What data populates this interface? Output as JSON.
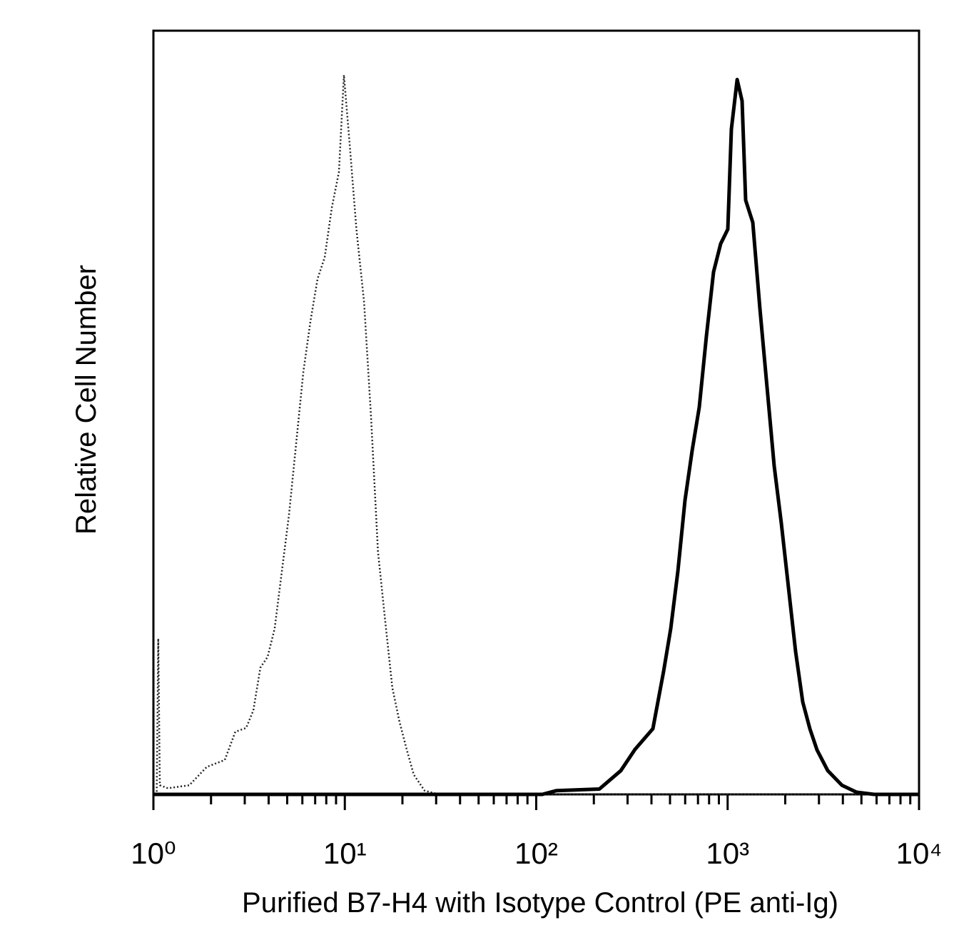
{
  "chart_data": {
    "type": "line",
    "xlabel": "Purified B7-H4 with Isotype Control (PE anti-Ig)",
    "ylabel": "Relative Cell Number",
    "xscale": "log",
    "xlim": [
      1,
      10000
    ],
    "ylim": [
      0,
      100
    ],
    "xticks": [
      {
        "value": 1,
        "label": "10⁰"
      },
      {
        "value": 10,
        "label": "10¹"
      },
      {
        "value": 100,
        "label": "10²"
      },
      {
        "value": 1000,
        "label": "10³"
      },
      {
        "value": 10000,
        "label": "10⁴"
      }
    ],
    "xminorticks": [
      2,
      3,
      4,
      5,
      6,
      7,
      8,
      9,
      20,
      30,
      40,
      50,
      60,
      70,
      80,
      90,
      200,
      300,
      400,
      500,
      600,
      700,
      800,
      900,
      2000,
      3000,
      4000,
      5000,
      6000,
      7000,
      8000,
      9000
    ],
    "series": [
      {
        "color": "#222222",
        "line_style": "dotted",
        "line_width": 2.5,
        "x": [
          1.03,
          1.04,
          1.06,
          1.08,
          1.19,
          1.54,
          1.9,
          2.36,
          2.68,
          3.05,
          3.33,
          3.62,
          3.95,
          4.3,
          4.69,
          5.11,
          5.57,
          6.07,
          6.61,
          7.2,
          7.85,
          8.55,
          9.32,
          9.89,
          10.6,
          11.5,
          12.6,
          13.7,
          14.9,
          16.3,
          17.7,
          19.3,
          21.1,
          22.9,
          26.1,
          31.0,
          10000
        ],
        "values": [
          0,
          0,
          20.4,
          1.2,
          0.8,
          1.2,
          3.6,
          4.5,
          8.2,
          8.7,
          11.0,
          16.6,
          18.0,
          21.7,
          29.2,
          36.6,
          46.0,
          55.3,
          61.9,
          67.5,
          70.3,
          76.8,
          81.5,
          94.2,
          85.2,
          74.0,
          64.5,
          49.6,
          31.8,
          22.4,
          14.0,
          9.5,
          5.8,
          2.6,
          0.5,
          0,
          0
        ]
      },
      {
        "color": "#000000",
        "line_style": "solid",
        "line_width": 5,
        "x": [
          1,
          107.6,
          127.7,
          213.8,
          276.5,
          328.4,
          406.9,
          462.9,
          504.5,
          549.5,
          598.8,
          652.4,
          710.9,
          774.7,
          844.0,
          919.5,
          1002,
          1046,
          1121,
          1190,
          1242,
          1353,
          1475,
          1607,
          1751,
          1908,
          2079,
          2266,
          2469,
          2690,
          2932,
          3335,
          3958,
          4699,
          5823,
          10000
        ],
        "values": [
          0,
          0,
          0.5,
          0.7,
          3.1,
          5.9,
          8.6,
          16.1,
          21.7,
          29.2,
          38.5,
          45.0,
          50.7,
          60.0,
          68.4,
          72.1,
          74.0,
          87.1,
          93.6,
          90.8,
          77.8,
          74.9,
          63.6,
          53.3,
          43.0,
          35.5,
          27.1,
          18.7,
          12.1,
          8.6,
          5.8,
          3.1,
          1.2,
          0.3,
          0,
          0
        ]
      }
    ]
  }
}
